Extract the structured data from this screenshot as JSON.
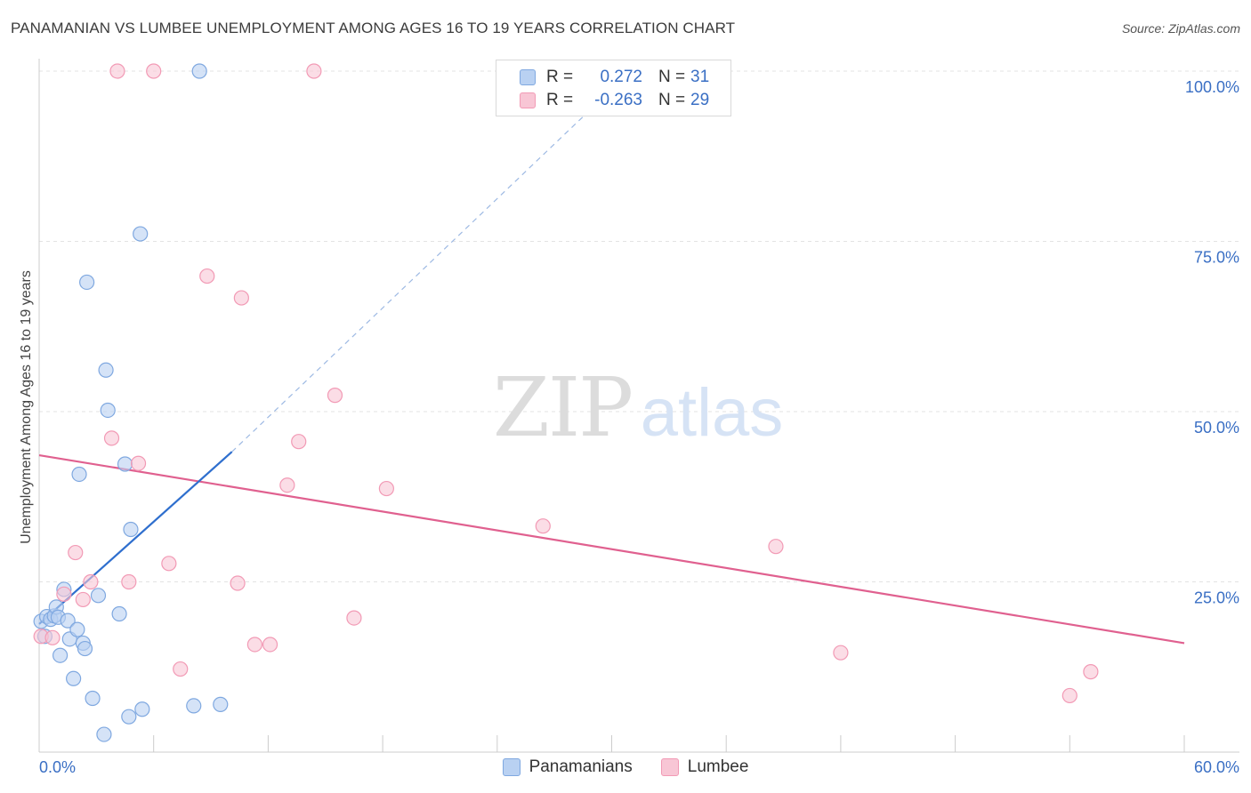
{
  "header": {
    "title": "PANAMANIAN VS LUMBEE UNEMPLOYMENT AMONG AGES 16 TO 19 YEARS CORRELATION CHART",
    "source": "Source: ZipAtlas.com"
  },
  "watermark": {
    "zip": "ZIP",
    "atlas": "atlas"
  },
  "legend": {
    "r_label": "R =",
    "n_label": "N =",
    "rows": [
      {
        "r": "0.272",
        "n": "31"
      },
      {
        "r": "-0.263",
        "n": "29"
      }
    ]
  },
  "colors": {
    "panamanian_fill": "#b9d1f2",
    "panamanian_stroke": "#7fa8e0",
    "panamanian_line": "#2f6fce",
    "lumbee_fill": "#f8c6d5",
    "lumbee_stroke": "#f29ab5",
    "lumbee_line": "#e0608f",
    "axis_text": "#3a6fc4"
  },
  "chart_data": {
    "type": "scatter",
    "title": "PANAMANIAN VS LUMBEE UNEMPLOYMENT AMONG AGES 16 TO 19 YEARS CORRELATION CHART",
    "xlabel": "",
    "ylabel": "Unemployment Among Ages 16 to 19 years",
    "xlim": [
      0,
      60
    ],
    "ylim": [
      0,
      100
    ],
    "x_tick_labels": [
      "0.0%",
      "60.0%"
    ],
    "y_tick_labels": [
      "25.0%",
      "50.0%",
      "75.0%",
      "100.0%"
    ],
    "y_ticks": [
      25,
      50,
      75,
      100
    ],
    "grid": true,
    "legend_position": "top-center",
    "series": [
      {
        "name": "Panamanians",
        "color": "#b9d1f2",
        "points": [
          [
            0.1,
            19.2
          ],
          [
            0.3,
            17.0
          ],
          [
            0.4,
            19.9
          ],
          [
            0.6,
            19.5
          ],
          [
            0.8,
            20.0
          ],
          [
            0.9,
            21.3
          ],
          [
            1.0,
            19.8
          ],
          [
            1.1,
            14.2
          ],
          [
            1.3,
            23.9
          ],
          [
            1.5,
            19.3
          ],
          [
            1.6,
            16.6
          ],
          [
            1.8,
            10.8
          ],
          [
            2.0,
            18.0
          ],
          [
            2.1,
            40.8
          ],
          [
            2.3,
            16.0
          ],
          [
            2.4,
            15.2
          ],
          [
            2.5,
            69.0
          ],
          [
            2.8,
            7.9
          ],
          [
            3.1,
            23.0
          ],
          [
            3.4,
            2.6
          ],
          [
            3.5,
            56.1
          ],
          [
            3.6,
            50.2
          ],
          [
            4.2,
            20.3
          ],
          [
            4.5,
            42.3
          ],
          [
            4.7,
            5.2
          ],
          [
            4.8,
            32.7
          ],
          [
            5.3,
            76.1
          ],
          [
            5.4,
            6.3
          ],
          [
            8.1,
            6.8
          ],
          [
            8.4,
            100.0
          ],
          [
            9.5,
            7.0
          ]
        ],
        "trend": {
          "x": [
            0,
            10.1
          ],
          "y": [
            18.8,
            44.1
          ],
          "dashed_to": [
            31.0,
            100.0
          ]
        }
      },
      {
        "name": "Lumbee",
        "color": "#f8c6d5",
        "points": [
          [
            0.1,
            17.0
          ],
          [
            0.7,
            16.8
          ],
          [
            1.3,
            23.2
          ],
          [
            1.9,
            29.3
          ],
          [
            2.3,
            22.4
          ],
          [
            2.7,
            25.0
          ],
          [
            3.8,
            46.1
          ],
          [
            4.1,
            100.0
          ],
          [
            4.7,
            25.0
          ],
          [
            5.2,
            42.4
          ],
          [
            6.0,
            100.0
          ],
          [
            6.8,
            27.7
          ],
          [
            7.4,
            12.2
          ],
          [
            8.8,
            69.9
          ],
          [
            10.4,
            24.8
          ],
          [
            10.6,
            66.7
          ],
          [
            11.3,
            15.8
          ],
          [
            12.1,
            15.8
          ],
          [
            13.0,
            39.2
          ],
          [
            13.6,
            45.6
          ],
          [
            14.4,
            100.0
          ],
          [
            15.5,
            52.4
          ],
          [
            16.5,
            19.7
          ],
          [
            18.2,
            38.7
          ],
          [
            26.4,
            33.2
          ],
          [
            38.6,
            30.2
          ],
          [
            42.0,
            14.6
          ],
          [
            54.0,
            8.3
          ],
          [
            55.1,
            11.8
          ]
        ],
        "trend": {
          "x": [
            0,
            60
          ],
          "y": [
            43.6,
            16.0
          ]
        }
      }
    ]
  },
  "bottom_legend": {
    "items": [
      {
        "label": "Panamanians"
      },
      {
        "label": "Lumbee"
      }
    ]
  }
}
